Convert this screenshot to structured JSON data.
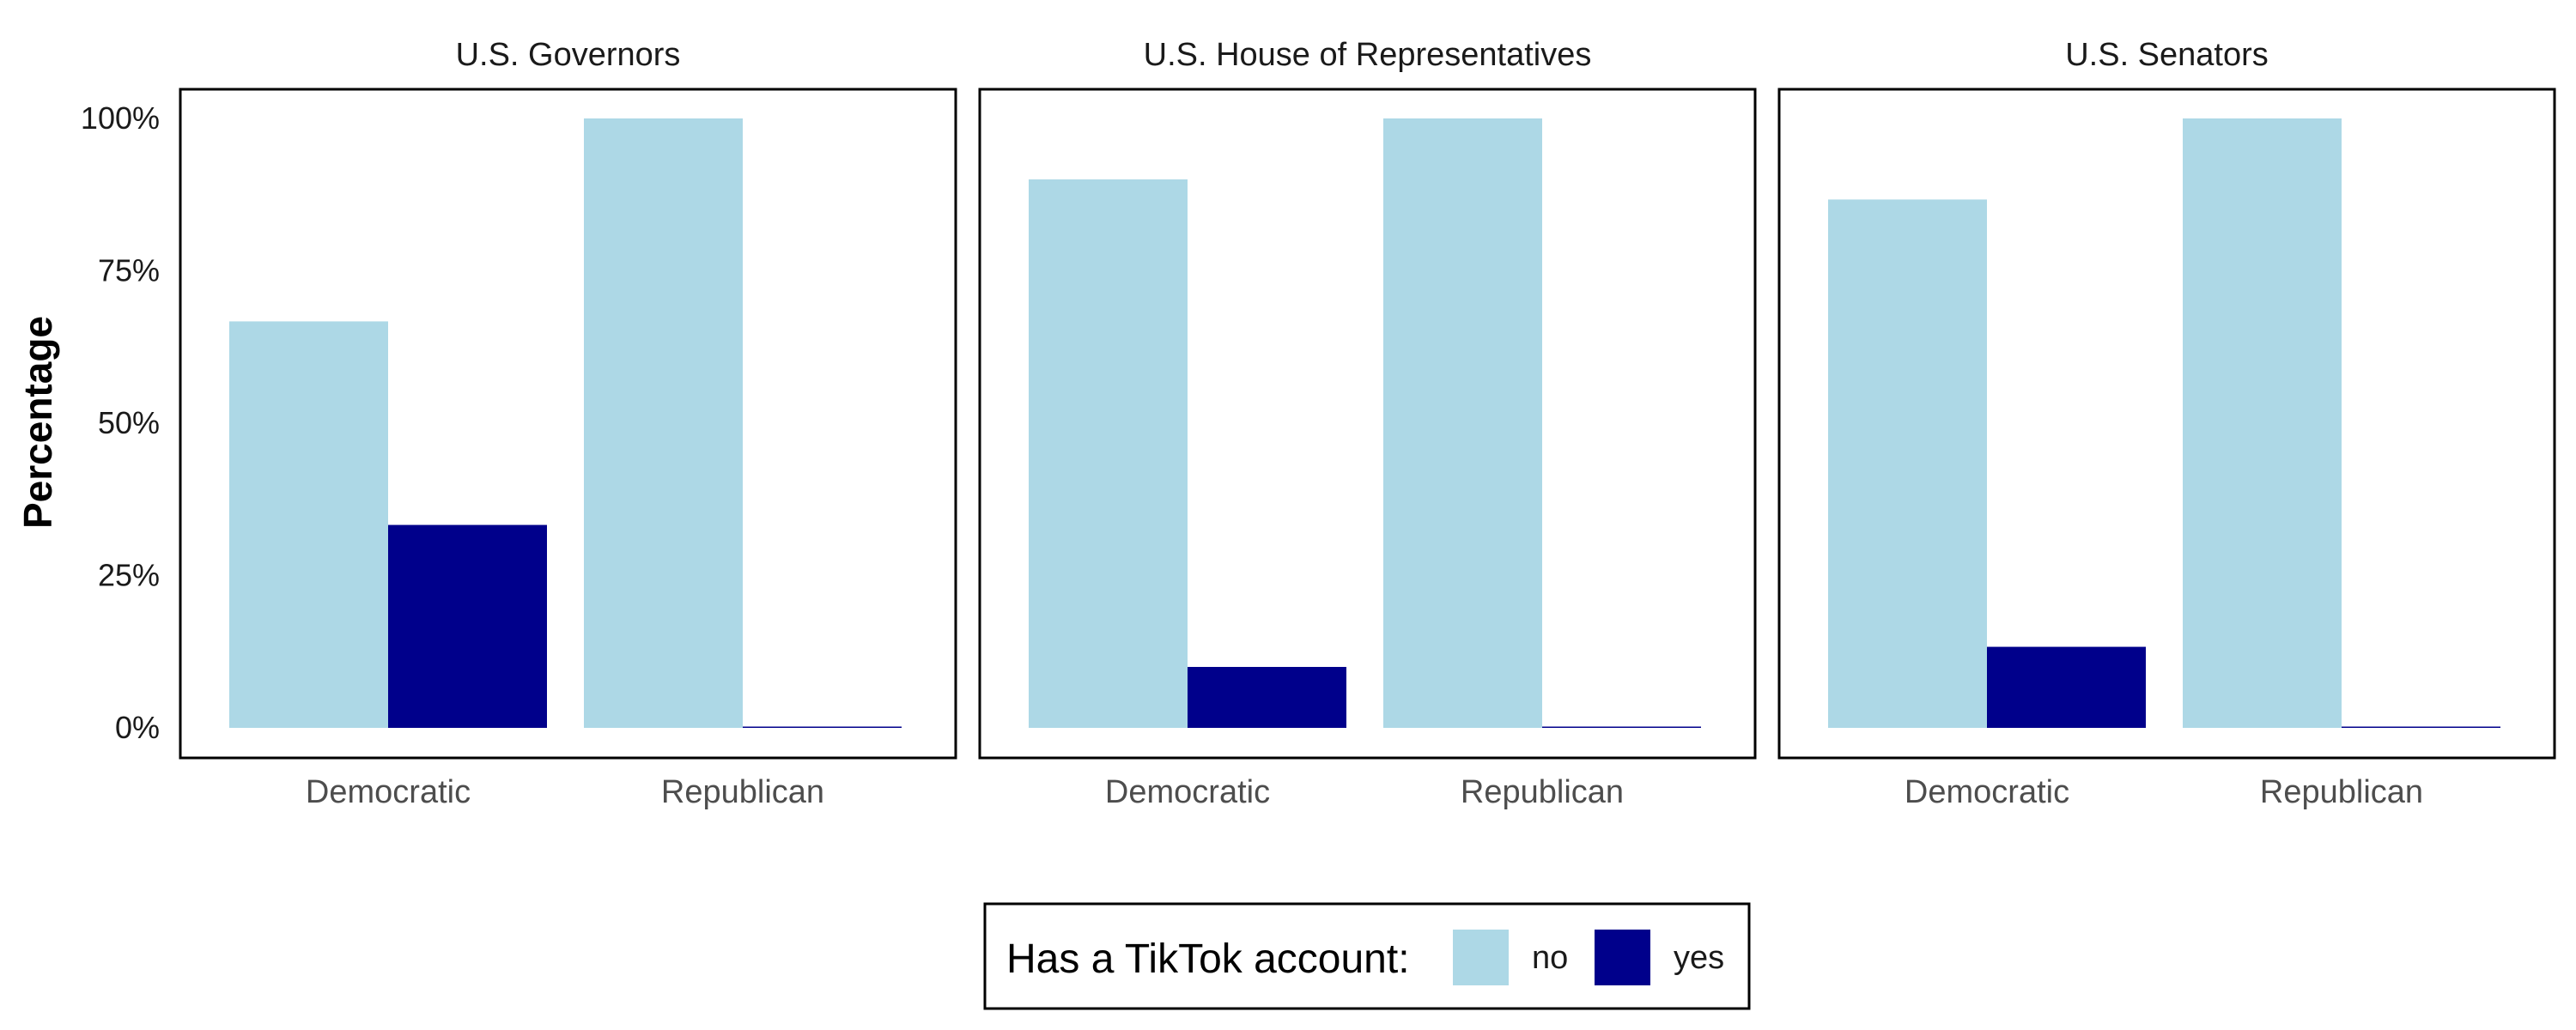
{
  "chart_data": {
    "type": "bar",
    "ylabel": "Percentage",
    "ylim": [
      0,
      1
    ],
    "yticks": [
      {
        "value": 0,
        "label": "0%"
      },
      {
        "value": 0.25,
        "label": "25%"
      },
      {
        "value": 0.5,
        "label": "50%"
      },
      {
        "value": 0.75,
        "label": "75%"
      },
      {
        "value": 1.0,
        "label": "100%"
      }
    ],
    "categories": [
      "Democratic",
      "Republican"
    ],
    "legend": {
      "title": "Has a TikTok account:",
      "position": "bottom",
      "entries": [
        {
          "key": "no",
          "label": "no",
          "color": "#add8e6"
        },
        {
          "key": "yes",
          "label": "yes",
          "color": "#00008b"
        }
      ]
    },
    "facets": [
      {
        "title": "U.S. Governors",
        "no": [
          0.667,
          1.0
        ],
        "yes": [
          0.333,
          0.0
        ]
      },
      {
        "title": "U.S. House of Representatives",
        "no": [
          0.9,
          1.0
        ],
        "yes": [
          0.1,
          0.0
        ]
      },
      {
        "title": "U.S. Senators",
        "no": [
          0.867,
          1.0
        ],
        "yes": [
          0.133,
          0.0
        ]
      }
    ]
  }
}
